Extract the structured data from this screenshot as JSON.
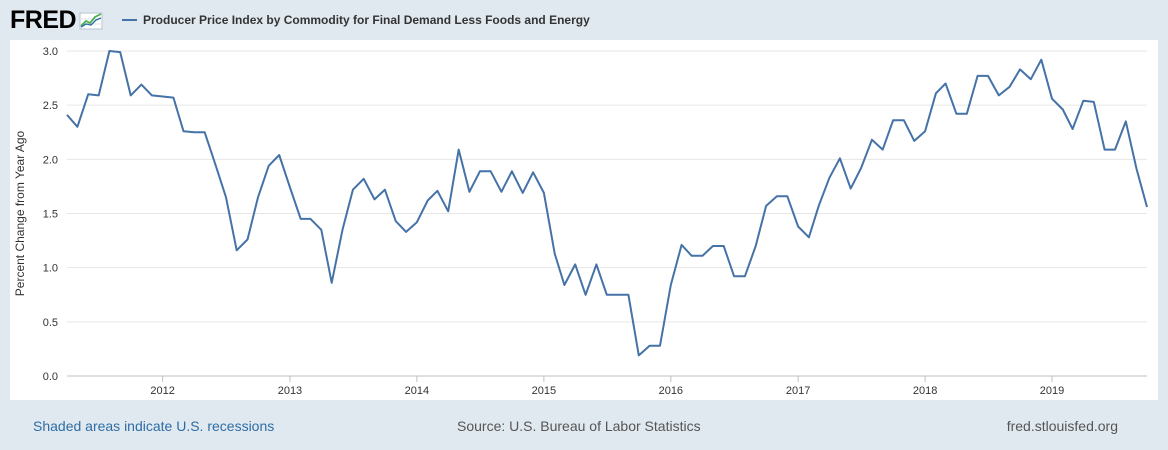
{
  "header": {
    "logo_text": "FRED",
    "logo_icon": "fred-graph-icon"
  },
  "legend": {
    "label": "Producer Price Index by Commodity for Final Demand Less Foods and Energy",
    "color": "#4572a7"
  },
  "footer": {
    "recession_note": "Shaded areas indicate U.S. recessions",
    "source": "Source: U.S. Bureau of Labor Statistics",
    "site": "fred.stlouisfed.org"
  },
  "chart_data": {
    "type": "line",
    "ylabel": "Percent Change from Year Ago",
    "ylim": [
      0,
      3
    ],
    "yticks": [
      "0.0",
      "0.5",
      "1.0",
      "1.5",
      "2.0",
      "2.5",
      "3.0"
    ],
    "xlim": [
      "2011-04-01",
      "2019-10-01"
    ],
    "xticks": [
      "2012",
      "2013",
      "2014",
      "2015",
      "2016",
      "2017",
      "2018",
      "2019"
    ],
    "grid": true,
    "series": [
      {
        "name": "Producer Price Index by Commodity for Final Demand Less Foods and Energy",
        "color": "#4572a7",
        "x": [
          "2011-04",
          "2011-05",
          "2011-06",
          "2011-07",
          "2011-08",
          "2011-09",
          "2011-10",
          "2011-11",
          "2011-12",
          "2012-01",
          "2012-02",
          "2012-03",
          "2012-04",
          "2012-05",
          "2012-06",
          "2012-07",
          "2012-08",
          "2012-09",
          "2012-10",
          "2012-11",
          "2012-12",
          "2013-01",
          "2013-02",
          "2013-03",
          "2013-04",
          "2013-05",
          "2013-06",
          "2013-07",
          "2013-08",
          "2013-09",
          "2013-10",
          "2013-11",
          "2013-12",
          "2014-01",
          "2014-02",
          "2014-03",
          "2014-04",
          "2014-05",
          "2014-06",
          "2014-07",
          "2014-08",
          "2014-09",
          "2014-10",
          "2014-11",
          "2014-12",
          "2015-01",
          "2015-02",
          "2015-03",
          "2015-04",
          "2015-05",
          "2015-06",
          "2015-07",
          "2015-08",
          "2015-09",
          "2015-10",
          "2015-11",
          "2015-12",
          "2016-01",
          "2016-02",
          "2016-03",
          "2016-04",
          "2016-05",
          "2016-06",
          "2016-07",
          "2016-08",
          "2016-09",
          "2016-10",
          "2016-11",
          "2016-12",
          "2017-01",
          "2017-02",
          "2017-03",
          "2017-04",
          "2017-05",
          "2017-06",
          "2017-07",
          "2017-08",
          "2017-09",
          "2017-10",
          "2017-11",
          "2017-12",
          "2018-01",
          "2018-02",
          "2018-03",
          "2018-04",
          "2018-05",
          "2018-06",
          "2018-07",
          "2018-08",
          "2018-09",
          "2018-10",
          "2018-11",
          "2018-12",
          "2019-01",
          "2019-02",
          "2019-03",
          "2019-04",
          "2019-05",
          "2019-06",
          "2019-07",
          "2019-08",
          "2019-09",
          "2019-10"
        ],
        "values": [
          2.41,
          2.3,
          2.6,
          2.59,
          3.0,
          2.99,
          2.59,
          2.69,
          2.59,
          2.58,
          2.57,
          2.26,
          2.25,
          2.25,
          1.95,
          1.65,
          1.16,
          1.26,
          1.65,
          1.94,
          2.04,
          1.74,
          1.45,
          1.45,
          1.35,
          0.86,
          1.35,
          1.72,
          1.82,
          1.63,
          1.72,
          1.43,
          1.33,
          1.42,
          1.62,
          1.71,
          1.52,
          2.09,
          1.7,
          1.89,
          1.89,
          1.7,
          1.89,
          1.69,
          1.88,
          1.69,
          1.13,
          0.84,
          1.03,
          0.75,
          1.03,
          0.75,
          0.75,
          0.75,
          0.19,
          0.28,
          0.28,
          0.84,
          1.21,
          1.11,
          1.11,
          1.2,
          1.2,
          0.92,
          0.92,
          1.2,
          1.57,
          1.66,
          1.66,
          1.38,
          1.28,
          1.57,
          1.83,
          2.01,
          1.73,
          1.92,
          2.18,
          2.09,
          2.36,
          2.36,
          2.17,
          2.26,
          2.61,
          2.7,
          2.42,
          2.42,
          2.77,
          2.77,
          2.59,
          2.67,
          2.83,
          2.74,
          2.92,
          2.56,
          2.46,
          2.28,
          2.54,
          2.53,
          2.09,
          2.09,
          2.35,
          1.91,
          1.56
        ]
      }
    ]
  }
}
